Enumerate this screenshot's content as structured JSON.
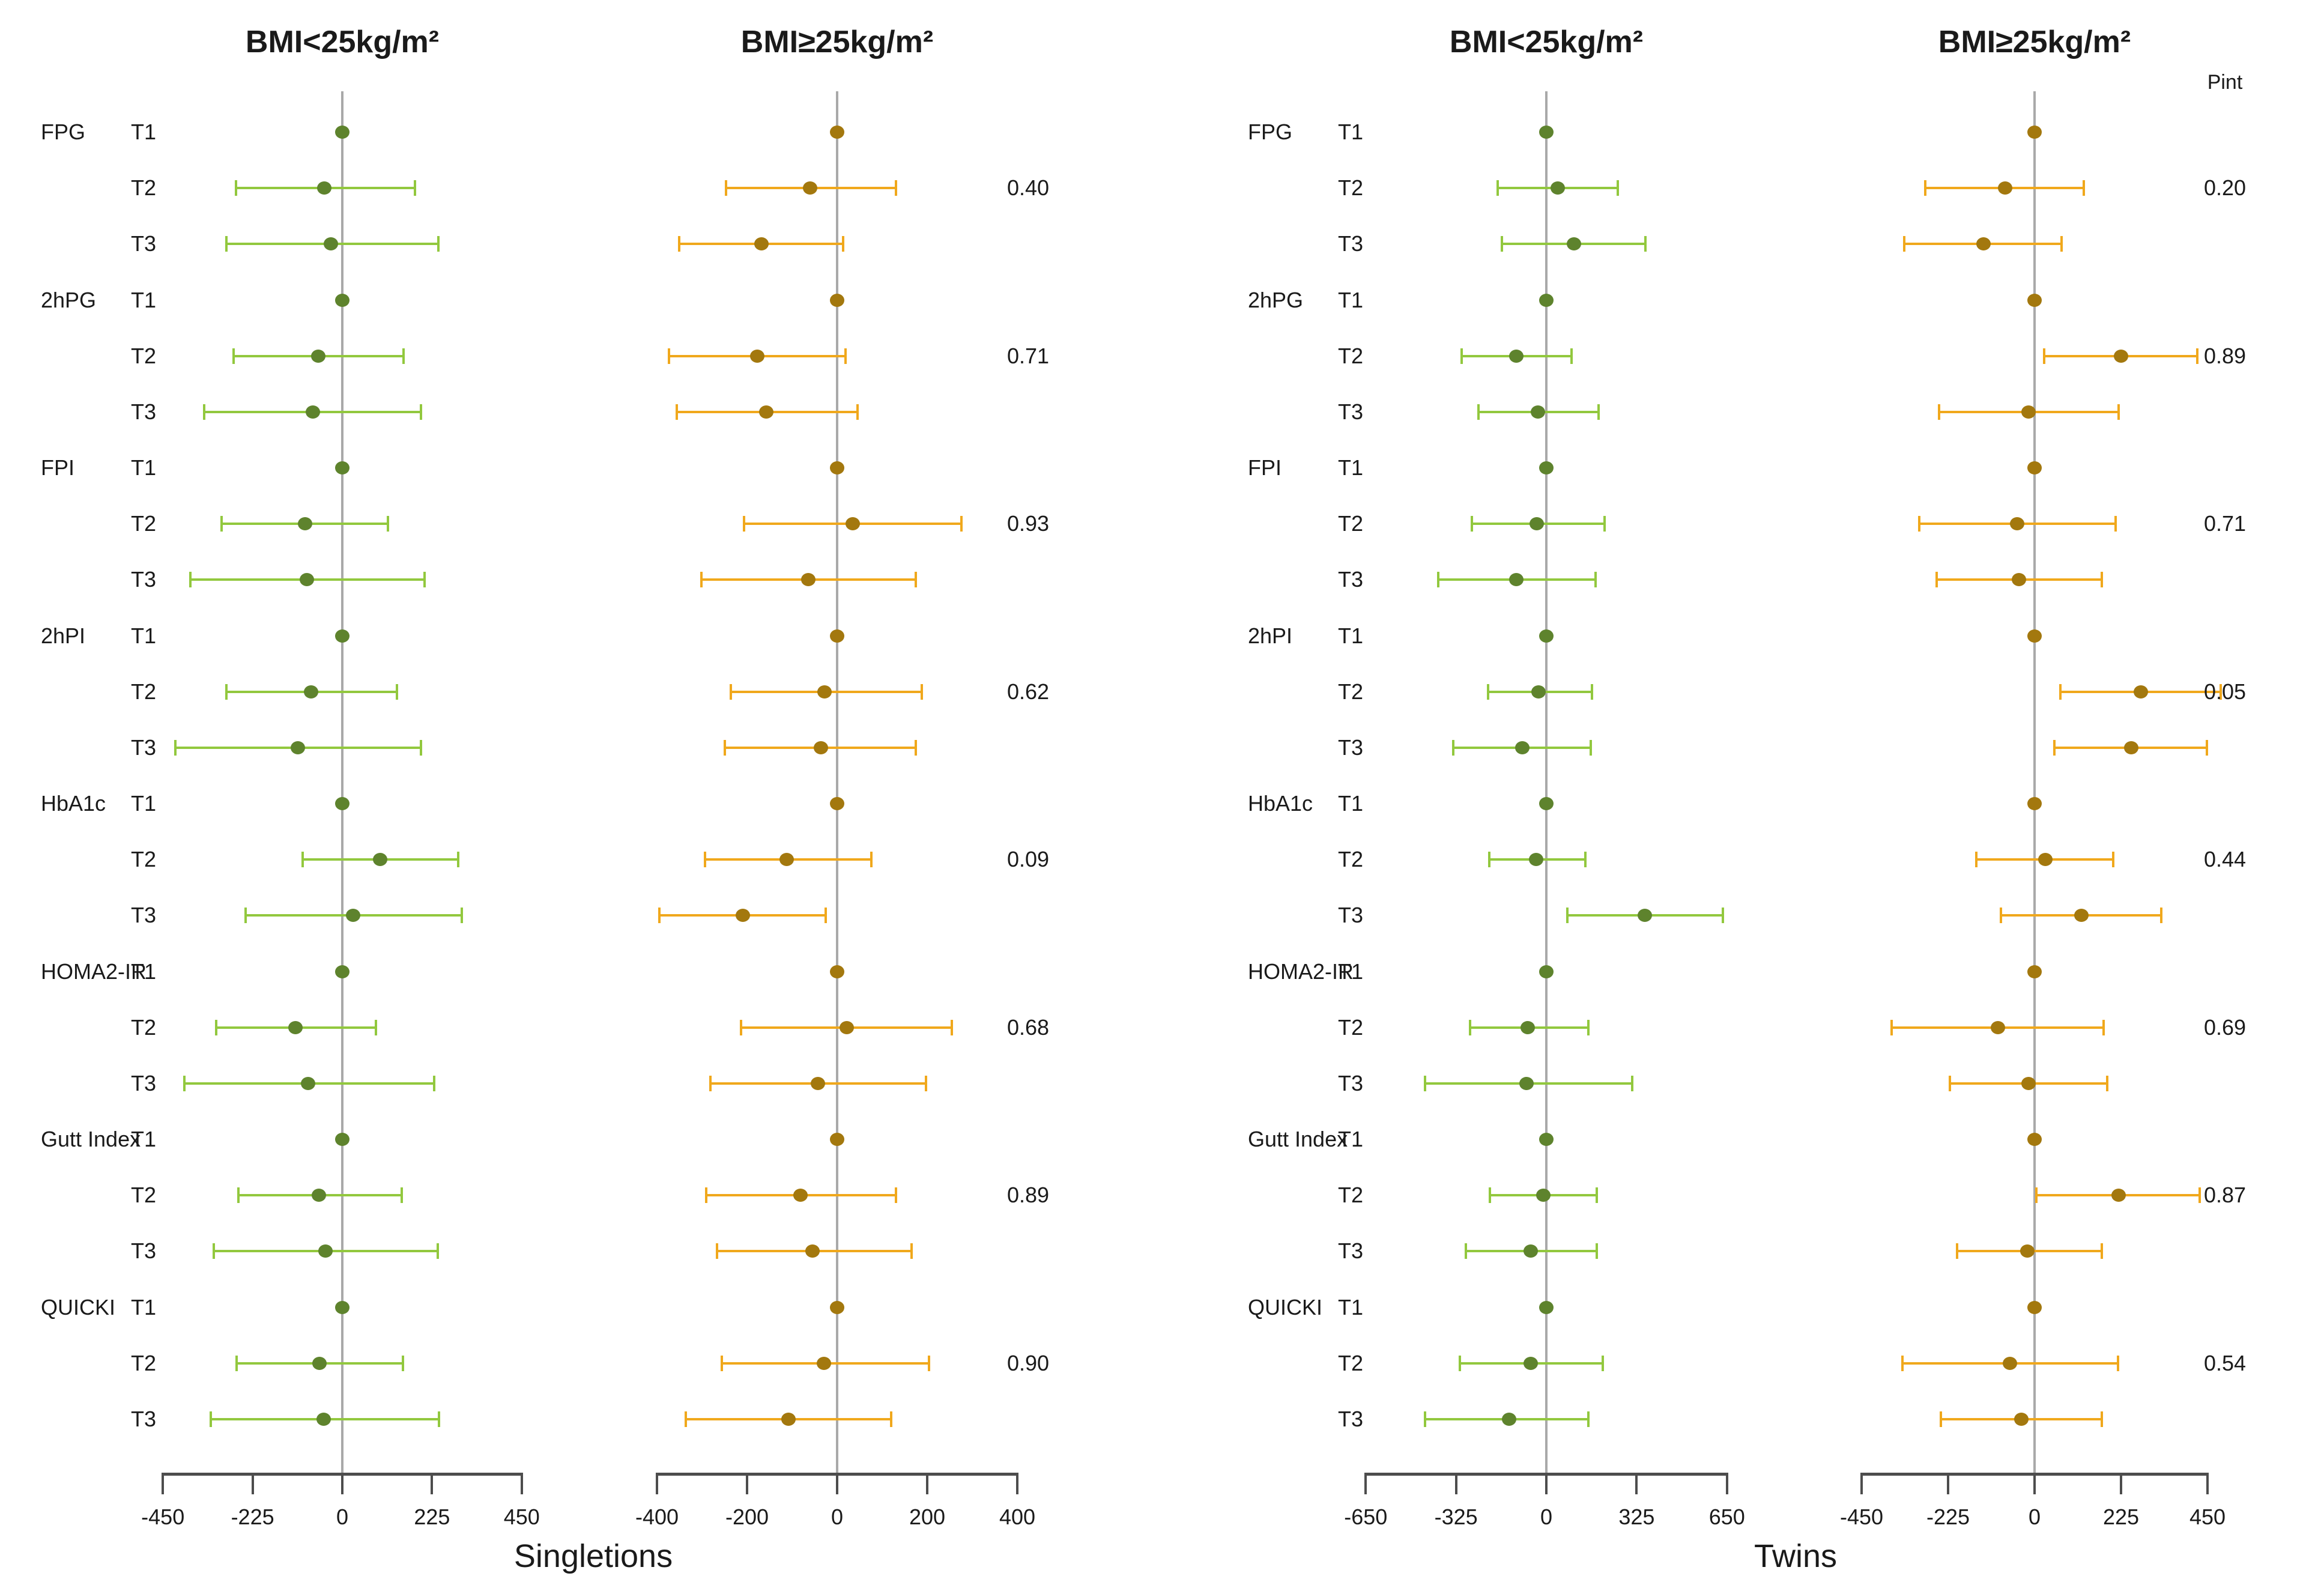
{
  "figure": {
    "captions": {
      "left": "Singletions",
      "right": "Twins"
    }
  },
  "colors": {
    "green_point": "#5e832d",
    "green_line": "#92c83e",
    "orange_point": "#a3780e",
    "orange_line": "#f0a81c",
    "zero_line": "#a9a9a9",
    "axis": "#4d4d4d",
    "text": "#1a1a1a"
  },
  "pint": {
    "columns": [
      {
        "header": "",
        "values": [
          "0.40",
          "0.71",
          "0.93",
          "0.62",
          "0.09",
          "0.68",
          "0.89",
          "0.90"
        ]
      },
      {
        "header": "Pint",
        "values": [
          "0.20",
          "0.89",
          "0.71",
          "0.05",
          "0.44",
          "0.69",
          "0.87",
          "0.54"
        ]
      }
    ]
  },
  "chart_data": [
    {
      "type": "forest",
      "title": "BMI<25kg/m²",
      "cohort": "Singletions",
      "series_color": "green",
      "axis": {
        "ticks": [
          -450,
          -225,
          0,
          225,
          450
        ],
        "min": -450,
        "max": 450
      },
      "rows": [
        {
          "var": "FPG",
          "t": "T1",
          "est": 0,
          "lo": null,
          "hi": null
        },
        {
          "var": "",
          "t": "T2",
          "est": -45,
          "lo": -267,
          "hi": 182
        },
        {
          "var": "",
          "t": "T3",
          "est": -28,
          "lo": -290,
          "hi": 241
        },
        {
          "var": "2hPG",
          "t": "T1",
          "est": 0,
          "lo": null,
          "hi": null
        },
        {
          "var": "",
          "t": "T2",
          "est": -60,
          "lo": -273,
          "hi": 154
        },
        {
          "var": "",
          "t": "T3",
          "est": -74,
          "lo": -346,
          "hi": 197
        },
        {
          "var": "FPI",
          "t": "T1",
          "est": 0,
          "lo": null,
          "hi": null
        },
        {
          "var": "",
          "t": "T2",
          "est": -94,
          "lo": -303,
          "hi": 115
        },
        {
          "var": "",
          "t": "T3",
          "est": -89,
          "lo": -381,
          "hi": 207
        },
        {
          "var": "2hPI",
          "t": "T1",
          "est": 0,
          "lo": null,
          "hi": null
        },
        {
          "var": "",
          "t": "T2",
          "est": -78,
          "lo": -290,
          "hi": 137
        },
        {
          "var": "",
          "t": "T3",
          "est": -111,
          "lo": -418,
          "hi": 198
        },
        {
          "var": "HbA1c",
          "t": "T1",
          "est": 0,
          "lo": null,
          "hi": null
        },
        {
          "var": "",
          "t": "T2",
          "est": 95,
          "lo": -100,
          "hi": 290
        },
        {
          "var": "",
          "t": "T3",
          "est": 27,
          "lo": -243,
          "hi": 300
        },
        {
          "var": "HOMA2-IR",
          "t": "T1",
          "est": 0,
          "lo": null,
          "hi": null
        },
        {
          "var": "",
          "t": "T2",
          "est": -118,
          "lo": -316,
          "hi": 84
        },
        {
          "var": "",
          "t": "T3",
          "est": -86,
          "lo": -396,
          "hi": 230
        },
        {
          "var": "Gutt Index",
          "t": "T1",
          "est": 0,
          "lo": null,
          "hi": null
        },
        {
          "var": "",
          "t": "T2",
          "est": -59,
          "lo": -260,
          "hi": 149
        },
        {
          "var": "",
          "t": "T3",
          "est": -42,
          "lo": -323,
          "hi": 240
        },
        {
          "var": "QUICKI",
          "t": "T1",
          "est": 0,
          "lo": null,
          "hi": null
        },
        {
          "var": "",
          "t": "T2",
          "est": -57,
          "lo": -265,
          "hi": 152
        },
        {
          "var": "",
          "t": "T3",
          "est": -47,
          "lo": -330,
          "hi": 242
        }
      ]
    },
    {
      "type": "forest",
      "title": "BMI≥25kg/m²",
      "cohort": "Singletions",
      "series_color": "orange",
      "axis": {
        "ticks": [
          -400,
          -200,
          0,
          200,
          400
        ],
        "min": -400,
        "max": 400
      },
      "rows": [
        {
          "var": "",
          "t": "T1",
          "est": 0,
          "lo": null,
          "hi": null
        },
        {
          "var": "",
          "t": "T2",
          "est": -60,
          "lo": -247,
          "hi": 131
        },
        {
          "var": "",
          "t": "T3",
          "est": -168,
          "lo": -351,
          "hi": 13
        },
        {
          "var": "",
          "t": "T1",
          "est": 0,
          "lo": null,
          "hi": null
        },
        {
          "var": "",
          "t": "T2",
          "est": -178,
          "lo": -374,
          "hi": 18
        },
        {
          "var": "",
          "t": "T3",
          "est": -157,
          "lo": -356,
          "hi": 45
        },
        {
          "var": "",
          "t": "T1",
          "est": 0,
          "lo": null,
          "hi": null
        },
        {
          "var": "",
          "t": "T2",
          "est": 35,
          "lo": -207,
          "hi": 276
        },
        {
          "var": "",
          "t": "T3",
          "est": -64,
          "lo": -302,
          "hi": 174
        },
        {
          "var": "",
          "t": "T1",
          "est": 0,
          "lo": null,
          "hi": null
        },
        {
          "var": "",
          "t": "T2",
          "est": -28,
          "lo": -236,
          "hi": 188
        },
        {
          "var": "",
          "t": "T3",
          "est": -36,
          "lo": -250,
          "hi": 174
        },
        {
          "var": "",
          "t": "T1",
          "est": 0,
          "lo": null,
          "hi": null
        },
        {
          "var": "",
          "t": "T2",
          "est": -112,
          "lo": -293,
          "hi": 76
        },
        {
          "var": "",
          "t": "T3",
          "est": -210,
          "lo": -395,
          "hi": -26
        },
        {
          "var": "",
          "t": "T1",
          "est": 0,
          "lo": null,
          "hi": null
        },
        {
          "var": "",
          "t": "T2",
          "est": 21,
          "lo": -213,
          "hi": 255
        },
        {
          "var": "",
          "t": "T3",
          "est": -43,
          "lo": -282,
          "hi": 197
        },
        {
          "var": "",
          "t": "T1",
          "est": 0,
          "lo": null,
          "hi": null
        },
        {
          "var": "",
          "t": "T2",
          "est": -82,
          "lo": -291,
          "hi": 131
        },
        {
          "var": "",
          "t": "T3",
          "est": -55,
          "lo": -267,
          "hi": 165
        },
        {
          "var": "",
          "t": "T1",
          "est": 0,
          "lo": null,
          "hi": null
        },
        {
          "var": "",
          "t": "T2",
          "est": -30,
          "lo": -256,
          "hi": 204
        },
        {
          "var": "",
          "t": "T3",
          "est": -108,
          "lo": -336,
          "hi": 120
        }
      ]
    },
    {
      "type": "forest",
      "title": "BMI<25kg/m²",
      "cohort": "Twins",
      "series_color": "green",
      "axis": {
        "ticks": [
          -650,
          -325,
          0,
          325,
          650
        ],
        "min": -650,
        "max": 650
      },
      "rows": [
        {
          "var": "FPG",
          "t": "T1",
          "est": 0,
          "lo": null,
          "hi": null
        },
        {
          "var": "",
          "t": "T2",
          "est": 41,
          "lo": -175,
          "hi": 258
        },
        {
          "var": "",
          "t": "T3",
          "est": 100,
          "lo": -159,
          "hi": 357
        },
        {
          "var": "2hPG",
          "t": "T1",
          "est": 0,
          "lo": null,
          "hi": null
        },
        {
          "var": "",
          "t": "T2",
          "est": -109,
          "lo": -305,
          "hi": 91
        },
        {
          "var": "",
          "t": "T3",
          "est": -31,
          "lo": -245,
          "hi": 188
        },
        {
          "var": "FPI",
          "t": "T1",
          "est": 0,
          "lo": null,
          "hi": null
        },
        {
          "var": "",
          "t": "T2",
          "est": -34,
          "lo": -269,
          "hi": 209
        },
        {
          "var": "",
          "t": "T3",
          "est": -107,
          "lo": -388,
          "hi": 178
        },
        {
          "var": "2hPI",
          "t": "T1",
          "est": 0,
          "lo": null,
          "hi": null
        },
        {
          "var": "",
          "t": "T2",
          "est": -29,
          "lo": -209,
          "hi": 164
        },
        {
          "var": "",
          "t": "T3",
          "est": -87,
          "lo": -335,
          "hi": 160
        },
        {
          "var": "HbA1c",
          "t": "T1",
          "est": 0,
          "lo": null,
          "hi": null
        },
        {
          "var": "",
          "t": "T2",
          "est": -37,
          "lo": -206,
          "hi": 140
        },
        {
          "var": "",
          "t": "T3",
          "est": 354,
          "lo": 76,
          "hi": 636
        },
        {
          "var": "HOMA2-IR",
          "t": "T1",
          "est": 0,
          "lo": null,
          "hi": null
        },
        {
          "var": "",
          "t": "T2",
          "est": -66,
          "lo": -275,
          "hi": 151
        },
        {
          "var": "",
          "t": "T3",
          "est": -72,
          "lo": -436,
          "hi": 310
        },
        {
          "var": "Gutt Index",
          "t": "T1",
          "est": 0,
          "lo": null,
          "hi": null
        },
        {
          "var": "",
          "t": "T2",
          "est": -10,
          "lo": -204,
          "hi": 181
        },
        {
          "var": "",
          "t": "T3",
          "est": -57,
          "lo": -289,
          "hi": 181
        },
        {
          "var": "QUICKI",
          "t": "T1",
          "est": 0,
          "lo": null,
          "hi": null
        },
        {
          "var": "",
          "t": "T2",
          "est": -57,
          "lo": -311,
          "hi": 203
        },
        {
          "var": "",
          "t": "T3",
          "est": -135,
          "lo": -436,
          "hi": 151
        }
      ]
    },
    {
      "type": "forest",
      "title": "BMI≥25kg/m²",
      "cohort": "Twins",
      "series_color": "orange",
      "axis": {
        "ticks": [
          -450,
          -225,
          0,
          225,
          450
        ],
        "min": -450,
        "max": 450
      },
      "rows": [
        {
          "var": "",
          "t": "T1",
          "est": 0,
          "lo": null,
          "hi": null
        },
        {
          "var": "",
          "t": "T2",
          "est": -77,
          "lo": -284,
          "hi": 128
        },
        {
          "var": "",
          "t": "T3",
          "est": -133,
          "lo": -339,
          "hi": 71
        },
        {
          "var": "",
          "t": "T1",
          "est": 0,
          "lo": null,
          "hi": null
        },
        {
          "var": "",
          "t": "T2",
          "est": 225,
          "lo": 25,
          "hi": 423
        },
        {
          "var": "",
          "t": "T3",
          "est": -16,
          "lo": -249,
          "hi": 218
        },
        {
          "var": "",
          "t": "T1",
          "est": 0,
          "lo": null,
          "hi": null
        },
        {
          "var": "",
          "t": "T2",
          "est": -45,
          "lo": -300,
          "hi": 211
        },
        {
          "var": "",
          "t": "T3",
          "est": -41,
          "lo": -255,
          "hi": 175
        },
        {
          "var": "",
          "t": "T1",
          "est": 0,
          "lo": null,
          "hi": null
        },
        {
          "var": "",
          "t": "T2",
          "est": 276,
          "lo": 67,
          "hi": 484
        },
        {
          "var": "",
          "t": "T3",
          "est": 251,
          "lo": 52,
          "hi": 448
        },
        {
          "var": "",
          "t": "T1",
          "est": 0,
          "lo": null,
          "hi": null
        },
        {
          "var": "",
          "t": "T2",
          "est": 28,
          "lo": -151,
          "hi": 204
        },
        {
          "var": "",
          "t": "T3",
          "est": 122,
          "lo": -87,
          "hi": 329
        },
        {
          "var": "",
          "t": "T1",
          "est": 0,
          "lo": null,
          "hi": null
        },
        {
          "var": "",
          "t": "T2",
          "est": -96,
          "lo": -372,
          "hi": 179
        },
        {
          "var": "",
          "t": "T3",
          "est": -16,
          "lo": -221,
          "hi": 189
        },
        {
          "var": "",
          "t": "T1",
          "est": 0,
          "lo": null,
          "hi": null
        },
        {
          "var": "",
          "t": "T2",
          "est": 218,
          "lo": 5,
          "hi": 430
        },
        {
          "var": "",
          "t": "T3",
          "est": -18,
          "lo": -202,
          "hi": 175
        },
        {
          "var": "",
          "t": "T1",
          "est": 0,
          "lo": null,
          "hi": null
        },
        {
          "var": "",
          "t": "T2",
          "est": -64,
          "lo": -344,
          "hi": 217
        },
        {
          "var": "",
          "t": "T3",
          "est": -35,
          "lo": -243,
          "hi": 175
        }
      ]
    }
  ]
}
